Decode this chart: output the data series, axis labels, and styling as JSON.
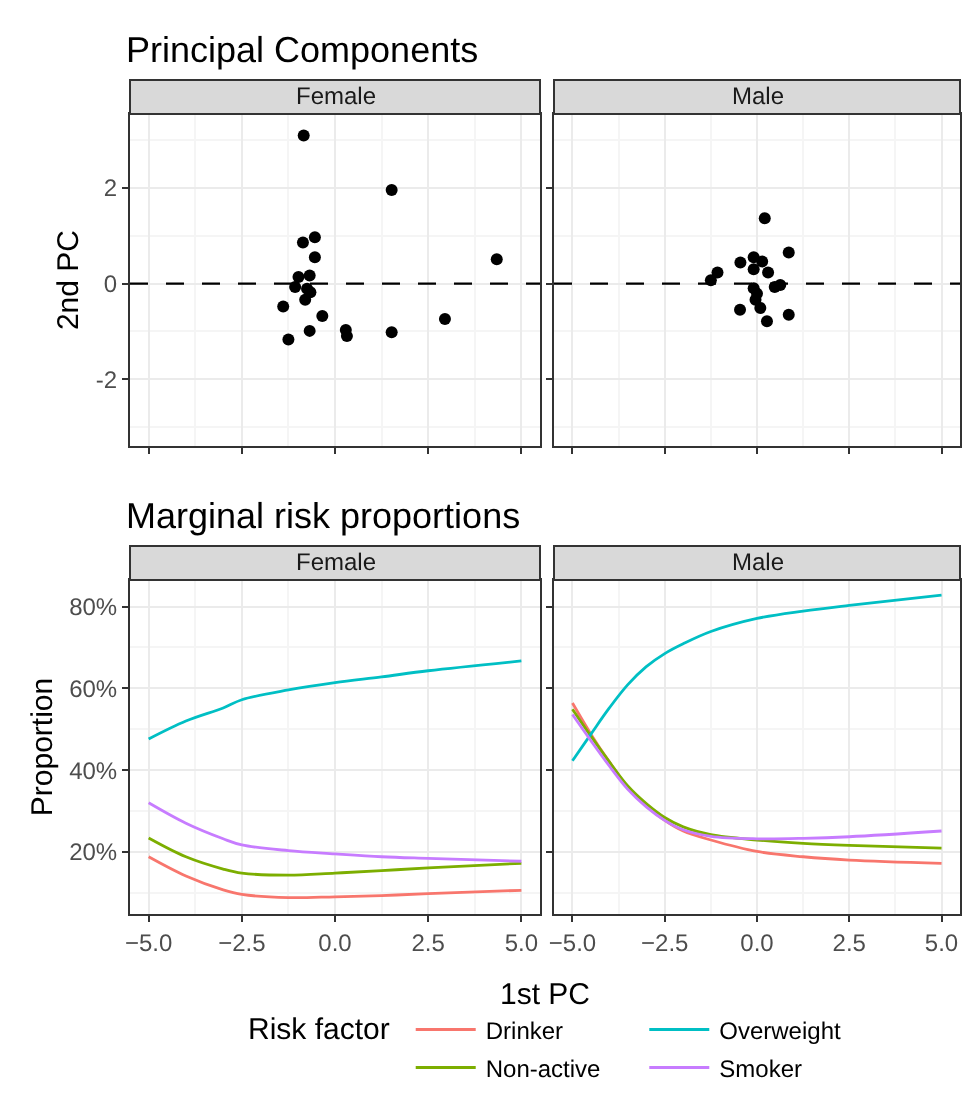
{
  "chart_data": [
    {
      "type": "scatter",
      "title": "Principal Components",
      "subtitle": "Female",
      "ylabel": "2nd PC",
      "color": "#000000",
      "marker": "circle",
      "x": [
        -0.84,
        1.52,
        -0.86,
        -0.54,
        -0.54,
        4.34,
        -0.98,
        -0.68,
        -1.07,
        -0.75,
        -0.66,
        -0.8,
        -1.39,
        -0.34,
        2.95,
        -0.68,
        0.29,
        0.32,
        1.52,
        -1.25
      ],
      "values": [
        3.1,
        1.96,
        0.86,
        0.97,
        0.55,
        0.51,
        0.14,
        0.17,
        -0.07,
        -0.11,
        -0.18,
        -0.34,
        -0.48,
        -0.68,
        -0.74,
        -0.99,
        -0.97,
        -1.1,
        -1.02,
        -1.17
      ],
      "xlim": [
        -5.5,
        5.5
      ],
      "xticks": [
        {
          "value": -5,
          "label": null
        },
        {
          "value": -2.5,
          "label": null
        },
        {
          "value": 0,
          "label": null
        },
        {
          "value": 2.5,
          "label": null
        },
        {
          "value": 5,
          "label": null
        }
      ],
      "ylim": [
        -3.4,
        3.55
      ],
      "yticks": [
        -2,
        0,
        2
      ],
      "grid": true,
      "tick_labels": "y",
      "ref_lines": [
        {
          "axis": "y",
          "value": 0,
          "color": "#000000",
          "line_style": "dashed"
        }
      ]
    },
    {
      "type": "scatter",
      "subtitle": "Male",
      "color": "#000000",
      "marker": "circle",
      "x": [
        0.21,
        -0.45,
        -0.09,
        0.14,
        -0.09,
        0.3,
        0.86,
        -1.07,
        -1.25,
        0.48,
        0.63,
        -0.09,
        0.0,
        -0.04,
        0.09,
        -0.46,
        0.27,
        0.86
      ],
      "values": [
        1.37,
        0.44,
        0.55,
        0.46,
        0.3,
        0.23,
        0.65,
        0.23,
        0.07,
        -0.07,
        -0.03,
        -0.1,
        -0.21,
        -0.34,
        -0.51,
        -0.55,
        -0.79,
        -0.65
      ],
      "xlim": [
        -5.5,
        5.5
      ],
      "xticks": [
        {
          "value": -5,
          "label": null
        },
        {
          "value": -2.5,
          "label": null
        },
        {
          "value": 0,
          "label": null
        },
        {
          "value": 2.5,
          "label": null
        },
        {
          "value": 5,
          "label": null
        }
      ],
      "ylim": [
        -3.4,
        3.55
      ],
      "yticks": [
        {
          "value": -2,
          "label": null
        },
        {
          "value": 0,
          "label": null
        },
        {
          "value": 2,
          "label": null
        }
      ],
      "grid": true,
      "tick_labels": false,
      "ref_lines": [
        {
          "axis": "y",
          "value": 0,
          "color": "#000000",
          "line_style": "dashed"
        }
      ]
    },
    {
      "type": "line",
      "title": "Marginal risk proportions",
      "subtitle": "Female",
      "xlabel": "1st PC",
      "ylabel": "Proportion",
      "legend_title": "Risk factor",
      "legend": "bottom",
      "line_style": "solid",
      "marker": "none",
      "x": [
        -5,
        -4,
        -3,
        -2.5,
        -1.25,
        0,
        1.25,
        2.5,
        5
      ],
      "series": [
        {
          "name": "Drinker",
          "color": "#f8766d",
          "values": [
            18.8,
            14.1,
            10.7,
            9.6,
            8.8,
            9.0,
            9.3,
            9.8,
            10.6
          ]
        },
        {
          "name": "Non-active",
          "color": "#7cae00",
          "values": [
            23.4,
            18.8,
            15.8,
            14.8,
            14.3,
            14.8,
            15.4,
            16.1,
            17.2
          ]
        },
        {
          "name": "Overweight",
          "color": "#00bfc4",
          "values": [
            47.6,
            52.0,
            55.2,
            57.2,
            59.6,
            61.4,
            62.8,
            64.3,
            66.7
          ]
        },
        {
          "name": "Smoker",
          "color": "#c77cff",
          "values": [
            32.0,
            27.0,
            23.2,
            21.7,
            20.3,
            19.5,
            18.8,
            18.4,
            17.7
          ]
        }
      ],
      "xlim": [
        -5.5,
        5.5
      ],
      "xticks": [
        {
          "value": -5,
          "label": "−5.0"
        },
        {
          "value": -2.5,
          "label": "−2.5"
        },
        {
          "value": 0,
          "label": "0.0"
        },
        {
          "value": 2.5,
          "label": "2.5"
        },
        {
          "value": 5,
          "label": "5.0"
        }
      ],
      "ylim": [
        4.8,
        86.5
      ],
      "yticks": [
        {
          "value": 20,
          "label": "20%"
        },
        {
          "value": 40,
          "label": "40%"
        },
        {
          "value": 60,
          "label": "60%"
        },
        {
          "value": 80,
          "label": "80%"
        }
      ],
      "grid": true
    },
    {
      "type": "line",
      "subtitle": "Male",
      "line_style": "solid",
      "marker": "none",
      "x": [
        -5,
        -4.5,
        -4,
        -3.5,
        -3,
        -2.5,
        -2,
        -1.25,
        0,
        1.25,
        2.5,
        5
      ],
      "series": [
        {
          "color": "#f8766d",
          "values": [
            56.4,
            48.8,
            42.0,
            35.8,
            31.3,
            27.7,
            25.1,
            22.9,
            20.1,
            18.8,
            18.0,
            17.2
          ]
        },
        {
          "color": "#7cae00",
          "values": [
            54.9,
            48.3,
            42.0,
            36.1,
            31.8,
            28.4,
            26.1,
            24.2,
            22.9,
            22.1,
            21.6,
            20.9
          ]
        },
        {
          "color": "#00bfc4",
          "values": [
            42.3,
            48.8,
            55.2,
            60.9,
            65.3,
            68.5,
            70.9,
            73.9,
            77.1,
            78.9,
            80.3,
            82.8
          ]
        },
        {
          "color": "#c77cff",
          "values": [
            53.6,
            47.2,
            41.0,
            35.3,
            31.0,
            27.7,
            25.4,
            23.8,
            23.2,
            23.3,
            23.7,
            25.1
          ]
        }
      ],
      "xlim": [
        -5.5,
        5.5
      ],
      "xticks": [
        {
          "value": -5,
          "label": "−5.0"
        },
        {
          "value": -2.5,
          "label": "−2.5"
        },
        {
          "value": 0,
          "label": "0.0"
        },
        {
          "value": 2.5,
          "label": "2.5"
        },
        {
          "value": 5,
          "label": "5.0"
        }
      ],
      "ylim": [
        4.8,
        86.5
      ],
      "yticks": [
        {
          "value": 20,
          "label": null
        },
        {
          "value": 40,
          "label": null
        },
        {
          "value": 60,
          "label": null
        },
        {
          "value": 80,
          "label": null
        }
      ],
      "grid": true,
      "tick_labels": "x"
    }
  ]
}
